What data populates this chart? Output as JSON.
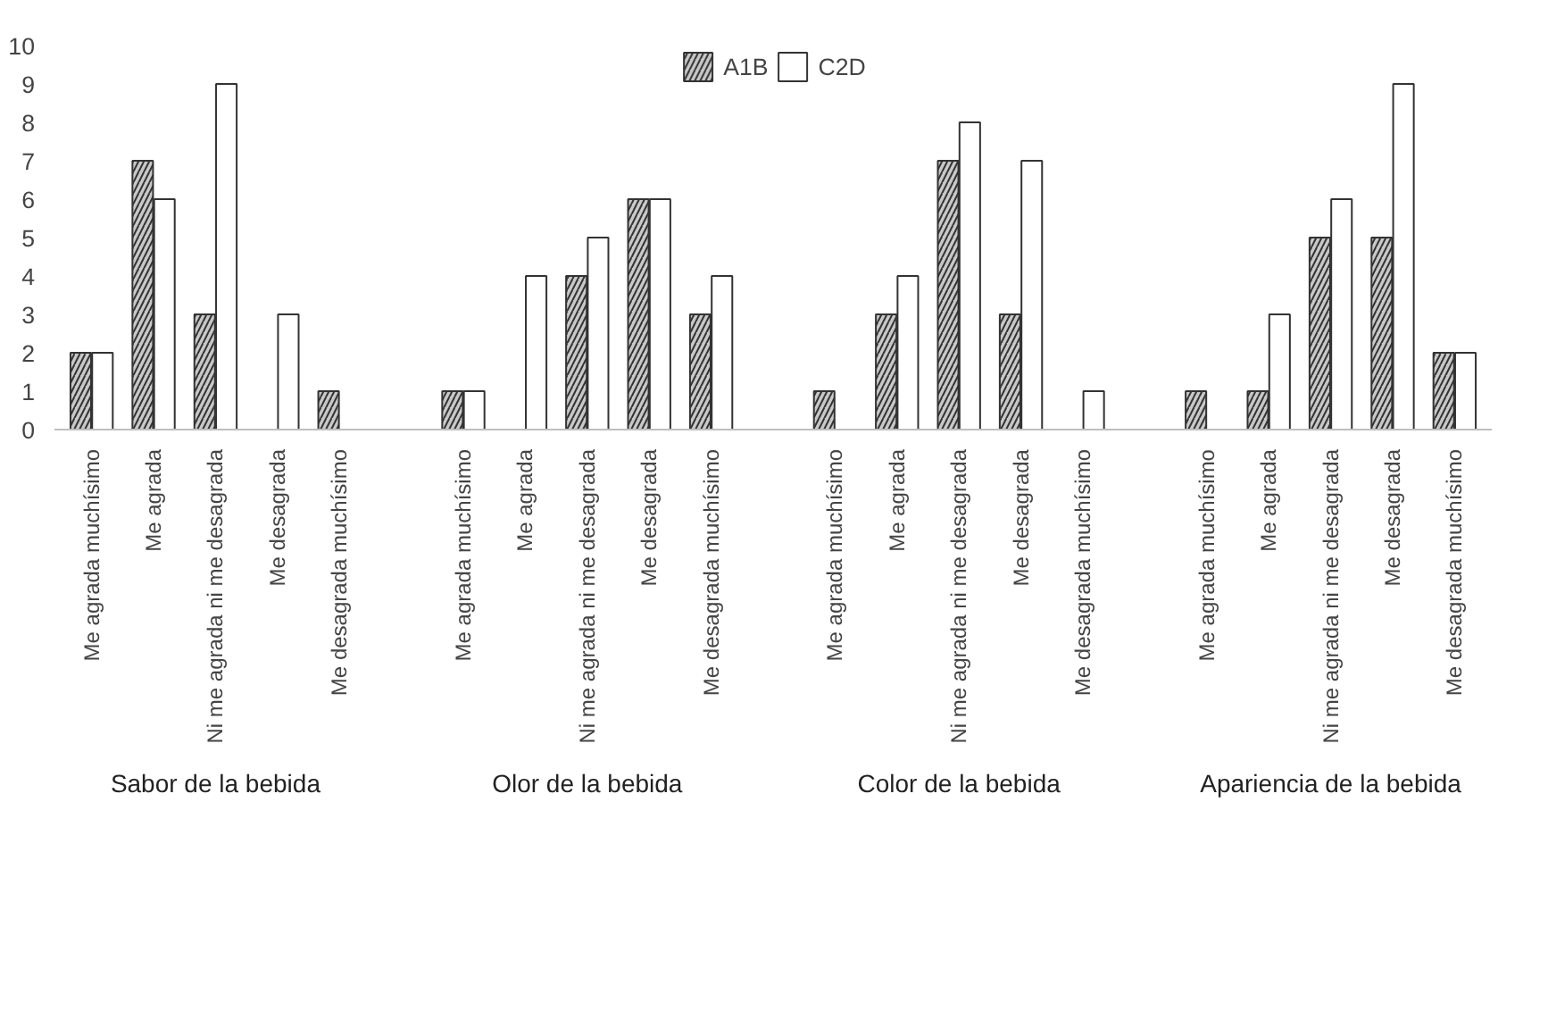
{
  "chart_data": {
    "type": "bar",
    "categories": [
      "Me agrada muchísimo",
      "Me agrada",
      "Ni me agrada ni me desagrada",
      "Me desagrada",
      "Me desagrada muchísimo",
      "Me agrada muchísimo",
      "Me agrada",
      "Ni me agrada ni me desagrada",
      "Me desagrada",
      "Me desagrada muchísimo",
      "Me agrada muchísimo",
      "Me agrada",
      "Ni me agrada ni me desagrada",
      "Me desagrada",
      "Me desagrada muchísimo",
      "Me agrada muchísimo",
      "Me agrada",
      "Ni me agrada ni me desagrada",
      "Me desagrada",
      "Me desagrada muchísimo"
    ],
    "annotations": [
      "Sabor de la bebida",
      "Olor de la bebida",
      "Color de la bebida",
      "Apariencia de la bebida"
    ],
    "series": [
      {
        "name": "A1B",
        "color": "#c8c8c8",
        "values": [
          2,
          7,
          3,
          0,
          1,
          1,
          0,
          4,
          6,
          3,
          1,
          3,
          7,
          3,
          0,
          1,
          1,
          5,
          5,
          2
        ]
      },
      {
        "name": "C2D",
        "color": "#ffffff",
        "values": [
          2,
          6,
          9,
          3,
          0,
          1,
          4,
          5,
          6,
          4,
          0,
          4,
          8,
          7,
          1,
          0,
          3,
          6,
          9,
          2
        ]
      }
    ],
    "ylim": [
      0,
      10
    ],
    "yticks": [
      0,
      1,
      2,
      3,
      4,
      5,
      6,
      7,
      8,
      9,
      10
    ],
    "grid": false,
    "legend": "top"
  }
}
